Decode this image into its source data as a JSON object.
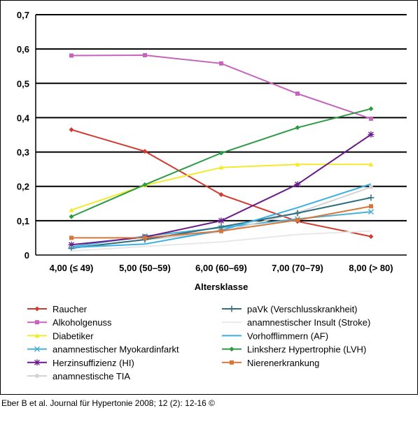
{
  "chart_data": {
    "type": "line",
    "categories": [
      "4,00  (≤ 49)",
      "5,00  (50–59)",
      "6,00  (60–69)",
      "7,00  (70–79)",
      "8,00  (> 80)"
    ],
    "xlabel": "Altersklasse",
    "ylabel": "",
    "ylim": [
      0,
      0.7
    ],
    "yticks": [
      "0",
      "0,1",
      "0,2",
      "0,3",
      "0,4",
      "0,5",
      "0,6",
      "0,7"
    ],
    "grid": true,
    "legend_position": "bottom",
    "series": [
      {
        "name": "Raucher",
        "color": "#d03a2f",
        "marker": "diamond",
        "values": [
          0.365,
          0.302,
          0.176,
          0.098,
          0.054
        ]
      },
      {
        "name": "Alkoholgenuss",
        "color": "#c663bb",
        "marker": "square",
        "values": [
          0.581,
          0.582,
          0.558,
          0.47,
          0.397
        ]
      },
      {
        "name": "Diabetiker",
        "color": "#f2ea2c",
        "marker": "triangle",
        "values": [
          0.131,
          0.203,
          0.255,
          0.264,
          0.264
        ]
      },
      {
        "name": "anamnestischer Myokardinfarkt",
        "color": "#4ab0d3",
        "marker": "x",
        "values": [
          0.024,
          0.055,
          0.08,
          0.105,
          0.126
        ]
      },
      {
        "name": "Herzinsuffizienz (HI)",
        "color": "#6a1b8a",
        "marker": "star",
        "values": [
          0.03,
          0.052,
          0.1,
          0.206,
          0.351
        ]
      },
      {
        "name": "anamnestische TIA",
        "color": "#d3d3d3",
        "marker": "circle",
        "values": [
          0.021,
          0.044,
          0.068,
          0.123,
          0.198
        ]
      },
      {
        "name": "paVk (Verschlusskrankheit)",
        "color": "#2f6f7f",
        "marker": "plus",
        "values": [
          0.02,
          0.045,
          0.082,
          0.122,
          0.167
        ]
      },
      {
        "name": "anamnestischer Insult (Stroke)",
        "color": "#e8e8e8",
        "marker": "none",
        "values": [
          0.012,
          0.025,
          0.038,
          0.06,
          0.07
        ]
      },
      {
        "name": "Vorhofflimmern (AF)",
        "color": "#3ab0e2",
        "marker": "none",
        "values": [
          0.022,
          0.032,
          0.072,
          0.138,
          0.207
        ]
      },
      {
        "name": "Linksherz Hypertrophie (LVH)",
        "color": "#2e9a44",
        "marker": "diamond",
        "values": [
          0.112,
          0.205,
          0.297,
          0.371,
          0.426
        ]
      },
      {
        "name": "Nierenerkrankung",
        "color": "#d5763a",
        "marker": "square",
        "values": [
          0.05,
          0.05,
          0.07,
          0.102,
          0.142
        ]
      }
    ]
  },
  "citation": "Eber B et al. Journal für Hypertonie 2008; 12 (2): 12-16 ©"
}
